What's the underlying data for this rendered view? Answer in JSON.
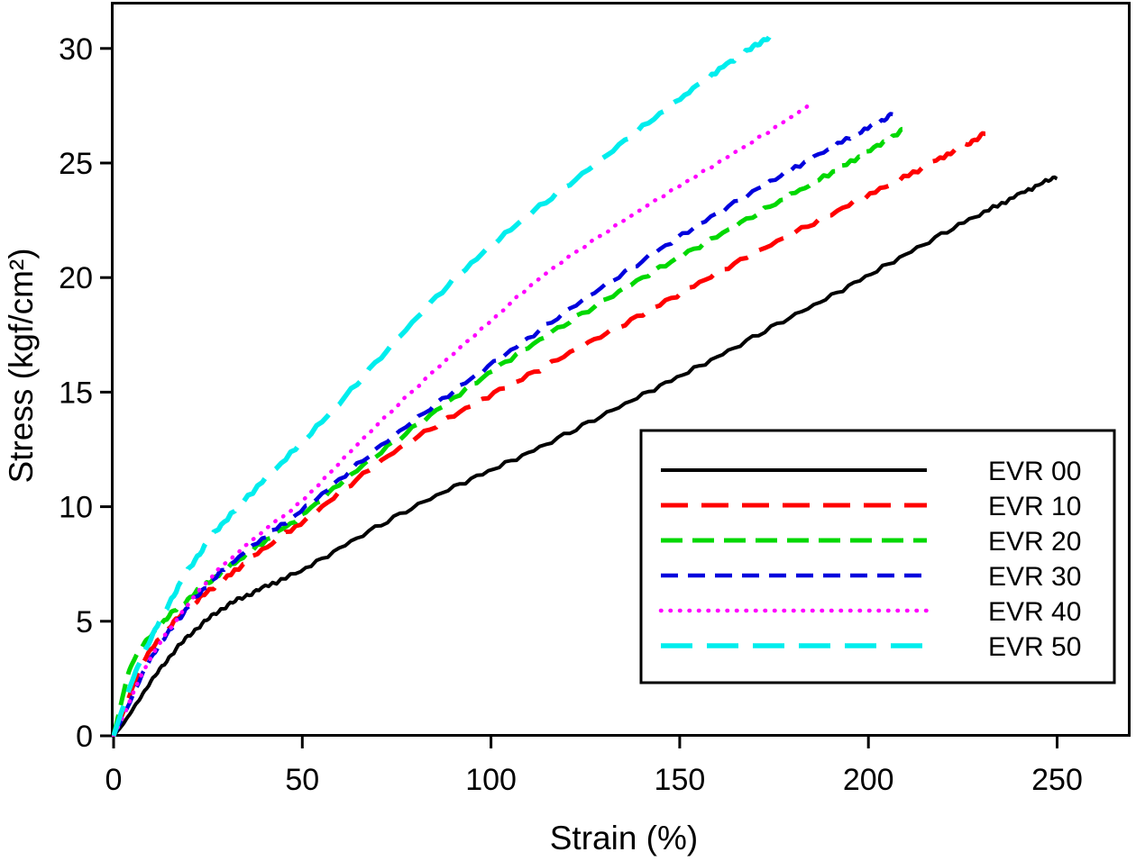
{
  "chart_data": {
    "type": "line",
    "title": "",
    "xlabel": "Strain (%)",
    "ylabel": "Stress (kgf/cm²)",
    "xlim": [
      0,
      269
    ],
    "ylim": [
      0,
      32
    ],
    "xticks": [
      0,
      50,
      100,
      150,
      200,
      250
    ],
    "yticks": [
      0,
      5,
      10,
      15,
      20,
      25,
      30
    ],
    "grid": false,
    "legend": {
      "position": "inside-lower-right",
      "border": true,
      "entries": [
        "EVR 00",
        "EVR 10",
        "EVR 20",
        "EVR 30",
        "EVR 40",
        "EVR 50"
      ]
    },
    "series": [
      {
        "name": "EVR 00",
        "color": "#000000",
        "style": "solid",
        "dash": "",
        "line_width": 4,
        "points": [
          [
            0,
            0
          ],
          [
            3,
            0.6
          ],
          [
            6,
            1.4
          ],
          [
            10,
            2.4
          ],
          [
            15,
            3.5
          ],
          [
            20,
            4.4
          ],
          [
            25,
            5.1
          ],
          [
            30,
            5.7
          ],
          [
            35,
            6.1
          ],
          [
            40,
            6.5
          ],
          [
            50,
            7.2
          ],
          [
            62,
            8.4
          ],
          [
            75,
            9.6
          ],
          [
            88,
            10.7
          ],
          [
            100,
            11.6
          ],
          [
            112,
            12.5
          ],
          [
            125,
            13.6
          ],
          [
            138,
            14.7
          ],
          [
            150,
            15.7
          ],
          [
            162,
            16.7
          ],
          [
            175,
            17.9
          ],
          [
            188,
            19.0
          ],
          [
            200,
            20.1
          ],
          [
            212,
            21.2
          ],
          [
            225,
            22.4
          ],
          [
            235,
            23.2
          ],
          [
            243,
            23.9
          ],
          [
            250,
            24.4
          ]
        ]
      },
      {
        "name": "EVR 10",
        "color": "#ff0000",
        "style": "long-dash",
        "dash": "30 15",
        "line_width": 5,
        "points": [
          [
            0,
            0
          ],
          [
            3,
            1.2
          ],
          [
            7,
            3.0
          ],
          [
            10,
            3.8
          ],
          [
            15,
            4.8
          ],
          [
            20,
            5.6
          ],
          [
            25,
            6.3
          ],
          [
            30,
            6.9
          ],
          [
            40,
            8.2
          ],
          [
            50,
            9.3
          ],
          [
            62,
            10.9
          ],
          [
            75,
            12.5
          ],
          [
            88,
            13.8
          ],
          [
            100,
            14.9
          ],
          [
            112,
            15.9
          ],
          [
            125,
            17.1
          ],
          [
            138,
            18.2
          ],
          [
            150,
            19.3
          ],
          [
            162,
            20.4
          ],
          [
            175,
            21.5
          ],
          [
            188,
            22.6
          ],
          [
            200,
            23.6
          ],
          [
            210,
            24.4
          ],
          [
            220,
            25.3
          ],
          [
            226,
            25.8
          ],
          [
            231,
            26.3
          ]
        ]
      },
      {
        "name": "EVR 20",
        "color": "#00d800",
        "style": "dash",
        "dash": "24 11",
        "line_width": 5,
        "points": [
          [
            0,
            0
          ],
          [
            2,
            1.4
          ],
          [
            4,
            2.9
          ],
          [
            7,
            3.8
          ],
          [
            10,
            4.4
          ],
          [
            15,
            5.3
          ],
          [
            20,
            6.0
          ],
          [
            25,
            6.7
          ],
          [
            30,
            7.3
          ],
          [
            40,
            8.5
          ],
          [
            50,
            9.6
          ],
          [
            62,
            11.3
          ],
          [
            75,
            12.9
          ],
          [
            88,
            14.5
          ],
          [
            100,
            15.9
          ],
          [
            112,
            17.2
          ],
          [
            125,
            18.5
          ],
          [
            138,
            19.8
          ],
          [
            150,
            20.9
          ],
          [
            162,
            22.0
          ],
          [
            175,
            23.2
          ],
          [
            185,
            24.1
          ],
          [
            195,
            25.0
          ],
          [
            203,
            25.8
          ],
          [
            209,
            26.4
          ]
        ]
      },
      {
        "name": "EVR 30",
        "color": "#0000dd",
        "style": "dash",
        "dash": "19 11",
        "line_width": 4.5,
        "points": [
          [
            0,
            0
          ],
          [
            3,
            1.0
          ],
          [
            6,
            2.1
          ],
          [
            10,
            3.5
          ],
          [
            15,
            4.6
          ],
          [
            20,
            5.7
          ],
          [
            25,
            6.6
          ],
          [
            30,
            7.4
          ],
          [
            40,
            8.7
          ],
          [
            50,
            9.8
          ],
          [
            62,
            11.5
          ],
          [
            75,
            13.2
          ],
          [
            88,
            14.8
          ],
          [
            100,
            16.2
          ],
          [
            112,
            17.6
          ],
          [
            125,
            19.1
          ],
          [
            138,
            20.5
          ],
          [
            150,
            21.8
          ],
          [
            162,
            23.0
          ],
          [
            175,
            24.3
          ],
          [
            185,
            25.2
          ],
          [
            195,
            26.1
          ],
          [
            202,
            26.7
          ],
          [
            207,
            27.2
          ]
        ]
      },
      {
        "name": "EVR 40",
        "color": "#ff00ff",
        "style": "dotted",
        "dash": "0.5 10",
        "line_width": 4.5,
        "points": [
          [
            0,
            0
          ],
          [
            3,
            1.0
          ],
          [
            6,
            2.2
          ],
          [
            10,
            3.5
          ],
          [
            15,
            4.7
          ],
          [
            20,
            5.8
          ],
          [
            25,
            6.8
          ],
          [
            30,
            7.6
          ],
          [
            40,
            9.0
          ],
          [
            50,
            10.2
          ],
          [
            62,
            12.3
          ],
          [
            75,
            14.4
          ],
          [
            88,
            16.4
          ],
          [
            100,
            18.1
          ],
          [
            112,
            19.9
          ],
          [
            125,
            21.4
          ],
          [
            138,
            22.8
          ],
          [
            150,
            24.0
          ],
          [
            162,
            25.2
          ],
          [
            175,
            26.5
          ],
          [
            185,
            27.6
          ]
        ]
      },
      {
        "name": "EVR 50",
        "color": "#00eded",
        "style": "long-dash",
        "dash": "35 16",
        "line_width": 5.5,
        "points": [
          [
            0,
            0
          ],
          [
            3,
            1.5
          ],
          [
            6,
            2.9
          ],
          [
            10,
            4.3
          ],
          [
            15,
            5.9
          ],
          [
            20,
            7.3
          ],
          [
            25,
            8.5
          ],
          [
            30,
            9.5
          ],
          [
            40,
            11.2
          ],
          [
            50,
            12.8
          ],
          [
            62,
            14.9
          ],
          [
            75,
            17.3
          ],
          [
            88,
            19.6
          ],
          [
            100,
            21.4
          ],
          [
            112,
            23.0
          ],
          [
            125,
            24.6
          ],
          [
            138,
            26.3
          ],
          [
            150,
            27.8
          ],
          [
            158,
            28.8
          ],
          [
            166,
            29.7
          ],
          [
            171,
            30.2
          ],
          [
            175,
            30.7
          ]
        ]
      }
    ]
  },
  "colors": {
    "background": "#ffffff",
    "frame": "#000000",
    "text": "#000000"
  }
}
